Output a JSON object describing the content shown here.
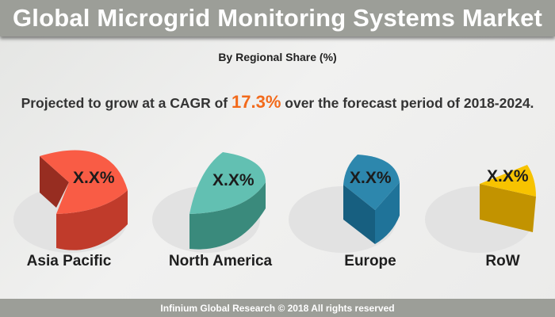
{
  "header": {
    "title": "Global Microgrid Monitoring Systems Market"
  },
  "subtitle": "By Regional Share (%)",
  "cagr": {
    "prefix": "Projected to grow at a CAGR of ",
    "value": "17.3%",
    "suffix": " over the forecast period of 2018-2024."
  },
  "regions": [
    {
      "name": "Asia Pacific",
      "share_label": "X.X%",
      "color": "#f95c45"
    },
    {
      "name": "North America",
      "share_label": "X.X%",
      "color": "#62c0b2"
    },
    {
      "name": "Europe",
      "share_label": "X.X%",
      "color": "#2d87ad"
    },
    {
      "name": "RoW",
      "share_label": "X.X%",
      "color": "#f7c300"
    }
  ],
  "footer": "Infinium Global Research © 2018 All rights reserved"
}
